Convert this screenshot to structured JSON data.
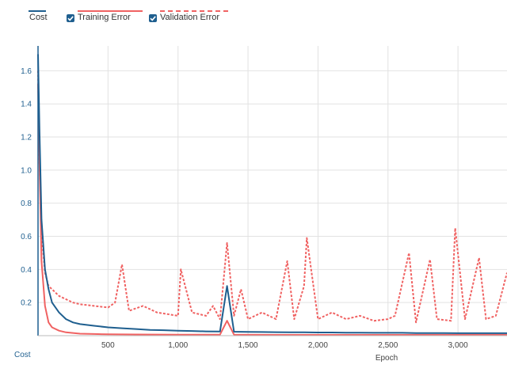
{
  "legend": {
    "cost_label": "Cost",
    "training_label": "Training Error",
    "validation_label": "Validation Error",
    "training_checked": true,
    "validation_checked": true
  },
  "colors": {
    "cost": "#1f5f8f",
    "training": "#f06262",
    "validation": "#f06262",
    "grid": "#e2e2e2"
  },
  "chart_data": {
    "type": "line",
    "xlabel": "Epoch",
    "ylabel": "Cost",
    "xlim": [
      0,
      3350
    ],
    "ylim": [
      0,
      1.75
    ],
    "x_ticks": [
      500,
      1000,
      1500,
      2000,
      2500,
      3000
    ],
    "x_tick_labels": [
      "500",
      "1,000",
      "1,500",
      "2,000",
      "2,500",
      "3,000"
    ],
    "y_ticks": [
      0.2,
      0.4,
      0.6,
      0.8,
      1.0,
      1.2,
      1.4,
      1.6
    ],
    "y_tick_labels": [
      "0.2",
      "0.4",
      "0.6",
      "0.8",
      "1.0",
      "1.2",
      "1.4",
      "1.6"
    ],
    "grid": true,
    "legend_position": "top-left",
    "series": [
      {
        "name": "Cost",
        "style": "solid",
        "x": [
          0,
          10,
          25,
          50,
          75,
          100,
          150,
          200,
          250,
          300,
          400,
          500,
          600,
          700,
          800,
          900,
          1000,
          1100,
          1200,
          1300,
          1350,
          1400,
          1500,
          1600,
          1700,
          1800,
          1900,
          2000,
          2100,
          2200,
          2300,
          2400,
          2500,
          2600,
          2700,
          2800,
          2900,
          3000,
          3100,
          3200,
          3350
        ],
        "y": [
          1.7,
          1.25,
          0.7,
          0.4,
          0.28,
          0.2,
          0.14,
          0.1,
          0.08,
          0.07,
          0.06,
          0.05,
          0.045,
          0.04,
          0.035,
          0.033,
          0.03,
          0.028,
          0.026,
          0.025,
          0.3,
          0.024,
          0.023,
          0.022,
          0.021,
          0.02,
          0.02,
          0.019,
          0.019,
          0.018,
          0.018,
          0.017,
          0.017,
          0.017,
          0.016,
          0.016,
          0.016,
          0.015,
          0.015,
          0.015,
          0.015
        ]
      },
      {
        "name": "Training Error",
        "style": "solid",
        "x": [
          0,
          10,
          25,
          50,
          75,
          100,
          150,
          200,
          300,
          400,
          500,
          700,
          1000,
          1300,
          1350,
          1400,
          1700,
          2000,
          2500,
          3000,
          3350
        ],
        "y": [
          1.52,
          1.05,
          0.45,
          0.18,
          0.08,
          0.05,
          0.03,
          0.02,
          0.012,
          0.01,
          0.008,
          0.007,
          0.006,
          0.006,
          0.09,
          0.006,
          0.005,
          0.005,
          0.005,
          0.005,
          0.005
        ]
      },
      {
        "name": "Validation Error",
        "style": "dashed",
        "x": [
          0,
          10,
          25,
          50,
          75,
          100,
          150,
          200,
          250,
          300,
          400,
          500,
          550,
          600,
          650,
          750,
          850,
          1000,
          1020,
          1100,
          1200,
          1250,
          1300,
          1350,
          1400,
          1450,
          1500,
          1600,
          1700,
          1780,
          1830,
          1900,
          1920,
          2000,
          2100,
          2200,
          2300,
          2400,
          2500,
          2550,
          2650,
          2700,
          2800,
          2850,
          2950,
          2980,
          3050,
          3150,
          3200,
          3270,
          3350
        ],
        "y": [
          1.6,
          1.05,
          0.62,
          0.38,
          0.3,
          0.28,
          0.24,
          0.22,
          0.2,
          0.19,
          0.18,
          0.17,
          0.2,
          0.43,
          0.15,
          0.18,
          0.14,
          0.12,
          0.4,
          0.14,
          0.12,
          0.18,
          0.1,
          0.56,
          0.12,
          0.28,
          0.1,
          0.14,
          0.1,
          0.45,
          0.1,
          0.3,
          0.59,
          0.1,
          0.14,
          0.1,
          0.12,
          0.09,
          0.1,
          0.12,
          0.5,
          0.08,
          0.46,
          0.1,
          0.09,
          0.65,
          0.1,
          0.47,
          0.1,
          0.12,
          0.38
        ]
      }
    ]
  }
}
